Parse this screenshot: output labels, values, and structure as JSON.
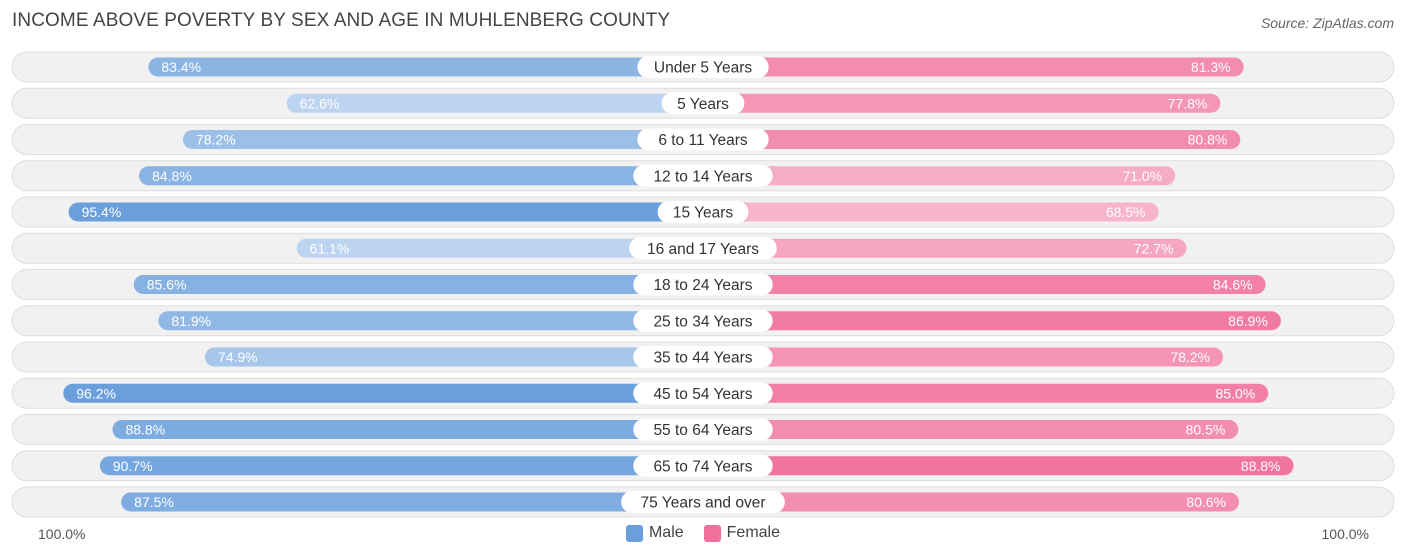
{
  "title": "INCOME ABOVE POVERTY BY SEX AND AGE IN MUHLENBERG COUNTY",
  "source": "Source: ZipAtlas.com",
  "axis": {
    "left_label": "100.0%",
    "right_label": "100.0%"
  },
  "legend": {
    "male_label": "Male",
    "female_label": "Female",
    "male_color": "#6a9fdc",
    "female_color": "#f07099"
  },
  "chart_data": {
    "type": "bar",
    "orientation": "horizontal-diverging",
    "categories": [
      "Under 5 Years",
      "5 Years",
      "6 to 11 Years",
      "12 to 14 Years",
      "15 Years",
      "16 and 17 Years",
      "18 to 24 Years",
      "25 to 34 Years",
      "35 to 44 Years",
      "45 to 54 Years",
      "55 to 64 Years",
      "65 to 74 Years",
      "75 Years and over"
    ],
    "series": [
      {
        "name": "Male",
        "values": [
          83.4,
          62.6,
          78.2,
          84.8,
          95.4,
          61.1,
          85.6,
          81.9,
          74.9,
          96.2,
          88.8,
          90.7,
          87.5
        ]
      },
      {
        "name": "Female",
        "values": [
          81.3,
          77.8,
          80.8,
          71.0,
          68.5,
          72.7,
          84.6,
          86.9,
          78.2,
          85.0,
          80.5,
          88.8,
          80.6
        ]
      }
    ],
    "value_labels": {
      "Male": [
        "83.4%",
        "62.6%",
        "78.2%",
        "84.8%",
        "95.4%",
        "61.1%",
        "85.6%",
        "81.9%",
        "74.9%",
        "96.2%",
        "88.8%",
        "90.7%",
        "87.5%"
      ],
      "Female": [
        "81.3%",
        "77.8%",
        "80.8%",
        "71.0%",
        "68.5%",
        "72.7%",
        "84.6%",
        "86.9%",
        "78.2%",
        "85.0%",
        "80.5%",
        "88.8%",
        "80.6%"
      ]
    },
    "xlim": [
      0,
      100
    ],
    "legend_position": "bottom-center"
  }
}
